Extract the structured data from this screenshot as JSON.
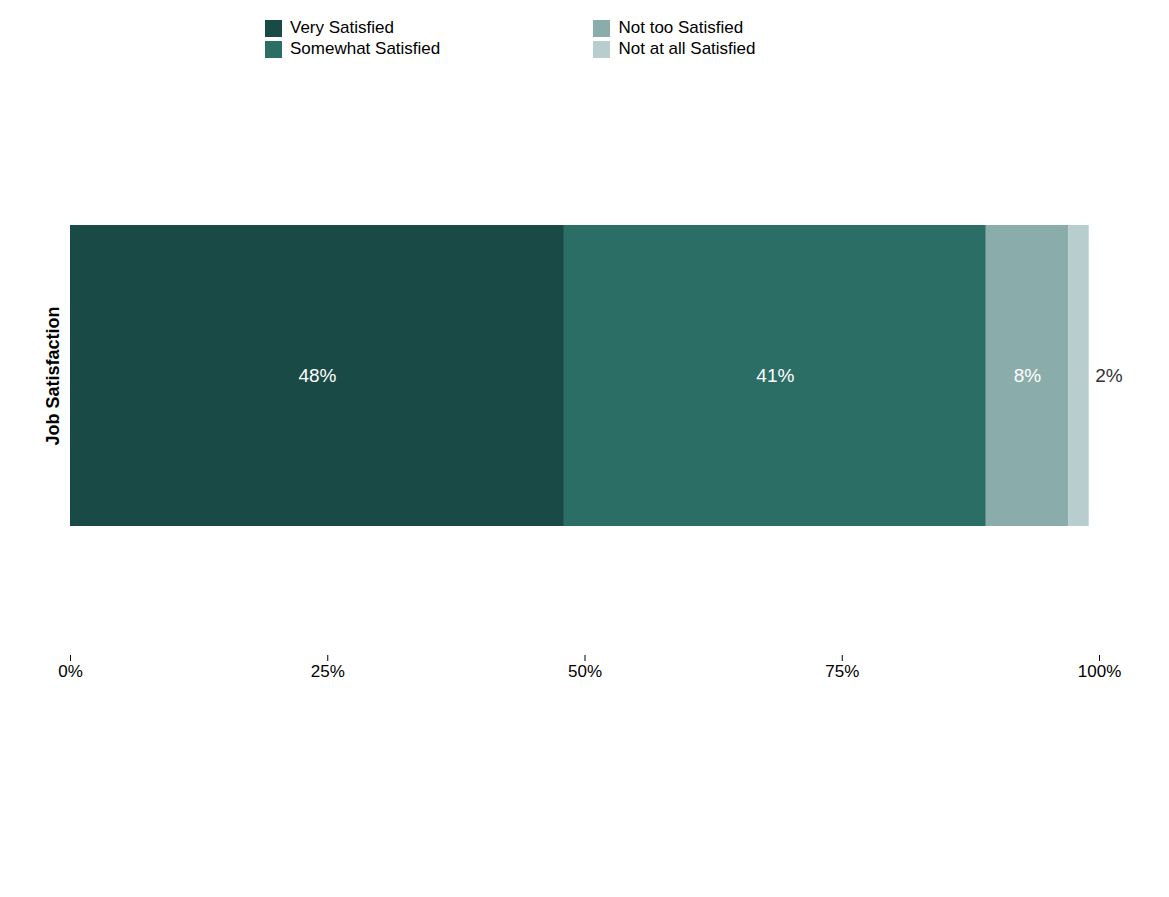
{
  "chart_data": {
    "type": "bar",
    "orientation": "horizontal",
    "stacked": true,
    "categories": [
      "Job Satisfaction"
    ],
    "series": [
      {
        "name": "Very Satisfied",
        "color": "#1a4a45",
        "values": [
          48
        ],
        "value_labels": [
          "48%"
        ]
      },
      {
        "name": "Somewhat Satisfied",
        "color": "#2a6e65",
        "values": [
          41
        ],
        "value_labels": [
          "41%"
        ]
      },
      {
        "name": "Not too Satisfied",
        "color": "#8aacaa",
        "values": [
          8
        ],
        "value_labels": [
          "8%"
        ]
      },
      {
        "name": "Not at all Satisfied",
        "color": "#b8cece",
        "values": [
          2
        ],
        "value_labels": [
          "2%"
        ]
      }
    ],
    "xlim": [
      0,
      100
    ],
    "xticks": [
      {
        "value": 0,
        "label": "0%"
      },
      {
        "value": 25,
        "label": "25%"
      },
      {
        "value": 50,
        "label": "50%"
      },
      {
        "value": 75,
        "label": "75%"
      },
      {
        "value": 100,
        "label": "100%"
      }
    ],
    "data_labels": true,
    "legend": "top",
    "grid": false
  }
}
